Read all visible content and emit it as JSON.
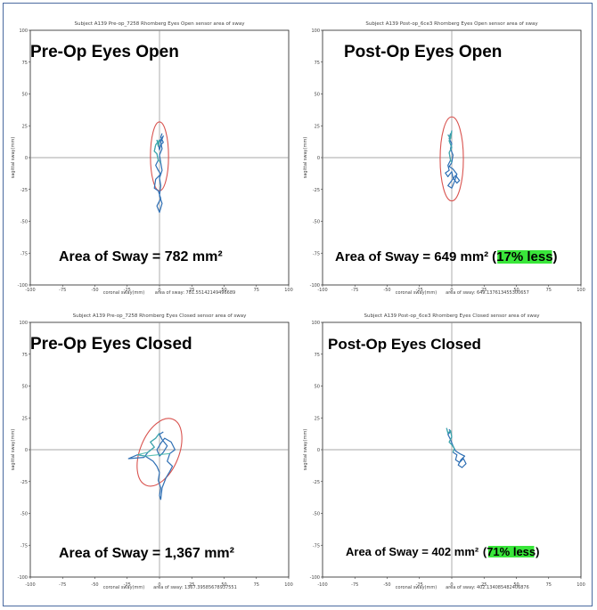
{
  "chart_data": [
    {
      "type": "scatter",
      "subtitle": "Subject A139 Pre-op_7258 Rhomberg Eyes Open sensor area of sway",
      "title": "Pre-Op Eyes Open",
      "xlabel": "coronal sway(mm)",
      "ylabel": "sagittal sway(mm)",
      "footnote": "area of sway: 781.55142149496689",
      "area_label": "Area of Sway = 782 mm²",
      "highlight": "",
      "xlim": [
        -100,
        100
      ],
      "ylim": [
        -100,
        100
      ],
      "xticks": [
        "-100",
        "-75",
        "-50",
        "-25",
        "0",
        "25",
        "50",
        "75",
        "100"
      ],
      "yticks": [
        "100",
        "75",
        "50",
        "25",
        "0",
        "-25",
        "-50",
        "-75",
        "-100"
      ],
      "grid": false,
      "ellipse": {
        "cx": 0,
        "cy": 1,
        "rx": 7,
        "ry": 27
      },
      "trace": [
        [
          -2,
          14
        ],
        [
          -1,
          9
        ],
        [
          0,
          14
        ],
        [
          -3,
          10
        ],
        [
          -4,
          5
        ],
        [
          -2,
          3
        ],
        [
          -1,
          -2
        ],
        [
          -3,
          -6
        ],
        [
          -1,
          -10
        ],
        [
          1,
          -13
        ],
        [
          -3,
          -17
        ],
        [
          -4,
          -24
        ],
        [
          -1,
          -26
        ],
        [
          1,
          -32
        ],
        [
          -2,
          -38
        ],
        [
          0,
          -43
        ],
        [
          2,
          -36
        ],
        [
          0,
          -30
        ],
        [
          1,
          -22
        ],
        [
          0,
          -16
        ],
        [
          2,
          -10
        ],
        [
          1,
          -4
        ],
        [
          0,
          2
        ],
        [
          2,
          7
        ],
        [
          1,
          12
        ],
        [
          3,
          17
        ],
        [
          1,
          14
        ],
        [
          -1,
          11
        ],
        [
          0,
          6
        ],
        [
          1,
          10
        ],
        [
          3,
          12
        ],
        [
          1,
          16
        ],
        [
          2,
          19
        ]
      ]
    },
    {
      "type": "scatter",
      "subtitle": "Subject A139 Post-op_6ce3 Rhomberg Eyes Open sensor area of sway",
      "title": "Post-Op Eyes Open",
      "xlabel": "coronal sway(mm)",
      "ylabel": "sagittal sway(mm)",
      "footnote": "area of sway: 649.137613455300657",
      "area_label": "Area of Sway = 649 mm²",
      "highlight": "(17% less)",
      "xlim": [
        -100,
        100
      ],
      "ylim": [
        -100,
        100
      ],
      "xticks": [
        "-100",
        "-75",
        "-50",
        "-25",
        "0",
        "25",
        "50",
        "75",
        "100"
      ],
      "yticks": [
        "100",
        "75",
        "50",
        "25",
        "0",
        "-25",
        "-50",
        "-75",
        "-100"
      ],
      "grid": false,
      "ellipse": {
        "cx": 0,
        "cy": -1,
        "rx": 9,
        "ry": 33
      },
      "trace": [
        [
          -3,
          18
        ],
        [
          -1,
          15
        ],
        [
          0,
          21
        ],
        [
          -2,
          13
        ],
        [
          0,
          8
        ],
        [
          -2,
          4
        ],
        [
          -1,
          -2
        ],
        [
          -3,
          -6
        ],
        [
          -2,
          -10
        ],
        [
          -5,
          -12
        ],
        [
          -3,
          -15
        ],
        [
          0,
          -11
        ],
        [
          1,
          -16
        ],
        [
          4,
          -20
        ],
        [
          6,
          -18
        ],
        [
          3,
          -14
        ],
        [
          0,
          -18
        ],
        [
          -3,
          -22
        ],
        [
          0,
          -24
        ],
        [
          2,
          -19
        ],
        [
          4,
          -13
        ],
        [
          1,
          -9
        ],
        [
          -2,
          -7
        ],
        [
          0,
          -4
        ],
        [
          1,
          2
        ],
        [
          -1,
          7
        ],
        [
          0,
          11
        ],
        [
          -2,
          15
        ],
        [
          -1,
          19
        ]
      ]
    },
    {
      "type": "scatter",
      "subtitle": "Subject A139 Pre-op_7258 Rhomberg Eyes Closed sensor area of sway",
      "title": "Pre-Op Eyes Closed",
      "xlabel": "coronal sway(mm)",
      "ylabel": "sagittal sway(mm)",
      "footnote": "area of sway: 1367.39585678937551",
      "area_label": "Area of Sway = 1,367 mm²",
      "highlight": "",
      "xlim": [
        -100,
        100
      ],
      "ylim": [
        -100,
        100
      ],
      "xticks": [
        "-100",
        "-75",
        "-50",
        "-25",
        "0",
        "25",
        "50",
        "75",
        "100"
      ],
      "yticks": [
        "100",
        "75",
        "50",
        "25",
        "0",
        "-25",
        "-50",
        "-75",
        "-100"
      ],
      "grid": false,
      "ellipse": {
        "cx": 0,
        "cy": -2,
        "rx": 15,
        "ry": 28,
        "rotate": 22
      },
      "trace": [
        [
          0,
          13
        ],
        [
          -3,
          9
        ],
        [
          -7,
          6
        ],
        [
          -4,
          2
        ],
        [
          -9,
          -2
        ],
        [
          -12,
          -6
        ],
        [
          -24,
          -7
        ],
        [
          -17,
          -4
        ],
        [
          -11,
          -5
        ],
        [
          -5,
          -9
        ],
        [
          -2,
          -13
        ],
        [
          0,
          -18
        ],
        [
          -1,
          -24
        ],
        [
          1,
          -30
        ],
        [
          0,
          -36
        ],
        [
          1,
          -39
        ],
        [
          2,
          -30
        ],
        [
          5,
          -22
        ],
        [
          8,
          -17
        ],
        [
          10,
          -13
        ],
        [
          6,
          -9
        ],
        [
          8,
          -3
        ],
        [
          12,
          0
        ],
        [
          9,
          6
        ],
        [
          4,
          9
        ],
        [
          1,
          5
        ],
        [
          -2,
          0
        ],
        [
          0,
          -5
        ],
        [
          3,
          -2
        ],
        [
          6,
          3
        ],
        [
          2,
          8
        ],
        [
          0,
          12
        ],
        [
          3,
          14
        ]
      ]
    },
    {
      "type": "scatter",
      "subtitle": "Subject A139 Post-op_6ce3 Rhomberg Eyes Closed sensor area of sway",
      "title": "Post-Op Eyes Closed",
      "xlabel": "coronal sway(mm)",
      "ylabel": "sagittal sway(mm)",
      "footnote": "area of sway: 402.134085482406876",
      "area_label": "Area of Sway = 402 mm²",
      "highlight": "(71% less)",
      "xlim": [
        -100,
        100
      ],
      "ylim": [
        -100,
        100
      ],
      "xticks": [
        "-100",
        "-75",
        "-50",
        "-25",
        "0",
        "25",
        "50",
        "75",
        "100"
      ],
      "yticks": [
        "100",
        "75",
        "50",
        "25",
        "0",
        "-25",
        "-50",
        "-75",
        "-100"
      ],
      "grid": false,
      "ellipse": null,
      "trace": [
        [
          -4,
          17
        ],
        [
          -3,
          13
        ],
        [
          -1,
          15
        ],
        [
          0,
          10
        ],
        [
          -2,
          6
        ],
        [
          0,
          4
        ],
        [
          2,
          1
        ],
        [
          1,
          -2
        ],
        [
          4,
          -4
        ],
        [
          3,
          -8
        ],
        [
          6,
          -10
        ],
        [
          9,
          -7
        ],
        [
          11,
          -11
        ],
        [
          8,
          -14
        ],
        [
          5,
          -12
        ],
        [
          7,
          -8
        ],
        [
          10,
          -5
        ],
        [
          6,
          -3
        ],
        [
          3,
          -1
        ],
        [
          1,
          3
        ],
        [
          -1,
          8
        ],
        [
          -3,
          12
        ],
        [
          -1,
          14
        ],
        [
          -2,
          16
        ]
      ]
    }
  ]
}
